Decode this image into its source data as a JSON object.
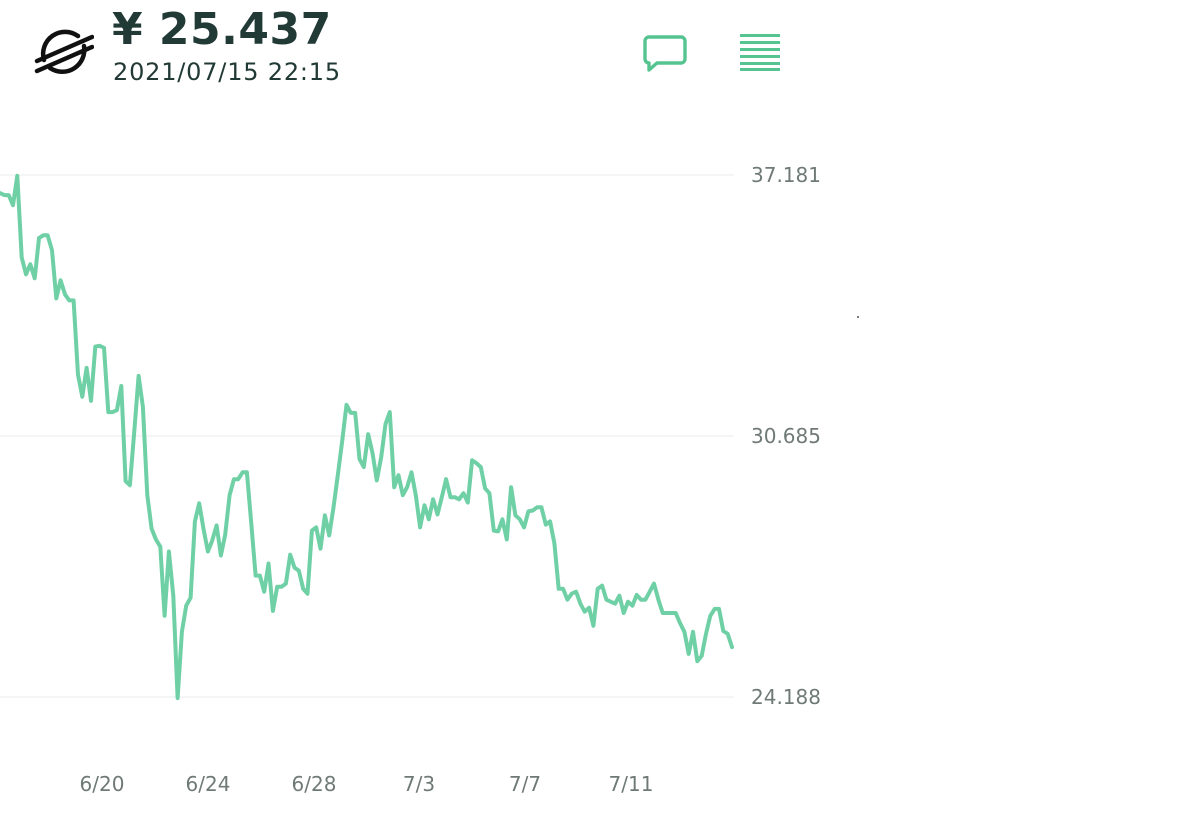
{
  "header": {
    "price": "¥ 25.437",
    "timestamp": "2021/07/15 22:15",
    "logo_icon": "stellar-logo-icon",
    "comment_icon": "comment-icon",
    "menu_icon": "menu-lines-icon"
  },
  "colors": {
    "line": "#6fd0a6",
    "accent": "#55c490",
    "text_dark": "#223a35",
    "tick_text": "#6f7a77",
    "grid": "#eef1f0"
  },
  "chart_data": {
    "type": "line",
    "title": "",
    "xlabel": "",
    "ylabel": "",
    "y_ticks": [
      "37.181",
      "30.685",
      "24.188"
    ],
    "ylim": [
      24.188,
      37.181
    ],
    "x_tick_labels": [
      "6/20",
      "6/24",
      "6/28",
      "7/3",
      "7/7",
      "7/11"
    ],
    "grid": "horizontal",
    "series": [
      {
        "values": [
          36.73,
          36.68,
          36.68,
          36.43,
          37.16,
          35.13,
          34.71,
          34.96,
          34.61,
          35.61,
          35.68,
          35.68,
          35.31,
          34.11,
          34.56,
          34.21,
          34.06,
          34.06,
          32.21,
          31.66,
          32.38,
          31.56,
          32.91,
          32.93,
          32.88,
          31.28,
          31.28,
          31.33,
          31.93,
          29.56,
          29.46,
          30.81,
          32.18,
          31.41,
          29.21,
          28.38,
          28.11,
          27.93,
          26.21,
          27.81,
          26.71,
          24.16,
          25.81,
          26.46,
          26.66,
          28.56,
          29.01,
          28.36,
          27.81,
          28.08,
          28.46,
          27.71,
          28.23,
          29.21,
          29.61,
          29.61,
          29.78,
          29.78,
          28.53,
          27.21,
          27.21,
          26.81,
          27.51,
          26.33,
          26.93,
          26.93,
          27.01,
          27.73,
          27.41,
          27.33,
          26.88,
          26.76,
          28.33,
          28.41,
          27.88,
          28.71,
          28.21,
          28.91,
          29.71,
          30.56,
          31.46,
          31.26,
          31.26,
          30.11,
          29.91,
          30.73,
          30.26,
          29.58,
          30.16,
          30.98,
          31.28,
          29.41,
          29.71,
          29.21,
          29.41,
          29.78,
          29.21,
          28.41,
          28.96,
          28.61,
          29.11,
          28.73,
          29.16,
          29.61,
          29.16,
          29.16,
          29.11,
          29.26,
          29.03,
          30.08,
          30.01,
          29.91,
          29.38,
          29.26,
          28.33,
          28.31,
          28.61,
          28.11,
          29.41,
          28.71,
          28.61,
          28.41,
          28.81,
          28.83,
          28.91,
          28.91,
          28.48,
          28.56,
          28.01,
          26.88,
          26.88,
          26.61,
          26.76,
          26.81,
          26.51,
          26.31,
          26.41,
          25.96,
          26.88,
          26.96,
          26.61,
          26.56,
          26.51,
          26.71,
          26.28,
          26.56,
          26.46,
          26.73,
          26.61,
          26.61,
          26.81,
          27.01,
          26.61,
          26.28,
          26.28,
          26.28,
          26.28,
          26.03,
          25.81,
          25.26,
          25.81,
          25.08,
          25.21,
          25.76,
          26.21,
          26.38,
          26.38,
          25.83,
          25.76,
          25.43
        ]
      }
    ]
  }
}
